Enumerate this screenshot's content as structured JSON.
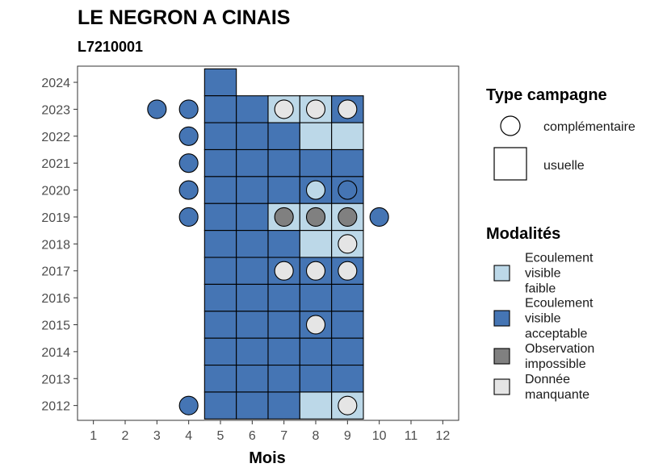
{
  "chart_data": {
    "type": "heatmap",
    "title": "LE NEGRON A CINAIS",
    "subtitle": "L7210001",
    "xlabel": "Mois",
    "ylabel": "",
    "x_ticks": [
      1,
      2,
      3,
      4,
      5,
      6,
      7,
      8,
      9,
      10,
      11,
      12
    ],
    "y_ticks": [
      2012,
      2013,
      2014,
      2015,
      2016,
      2017,
      2018,
      2019,
      2020,
      2021,
      2022,
      2023,
      2024
    ],
    "xlim": [
      0.5,
      12.5
    ],
    "ylim": [
      2011.45,
      2024.6
    ],
    "grid": false,
    "legend_position": "right",
    "colors": {
      "faible": "#bcd8e8",
      "acceptable": "#4575b4",
      "impossible": "#808080",
      "manquante": "#e5e5e5",
      "border": "#000000"
    },
    "legends": {
      "type": {
        "title": "Type campagne",
        "items": [
          {
            "label": "complémentaire",
            "shape": "circle"
          },
          {
            "label": "usuelle",
            "shape": "square"
          }
        ]
      },
      "modalites": {
        "title": "Modalités",
        "items": [
          {
            "key": "faible",
            "label_lines": [
              "Ecoulement",
              "visible",
              "faible"
            ]
          },
          {
            "key": "acceptable",
            "label_lines": [
              "Ecoulement",
              "visible",
              "acceptable"
            ]
          },
          {
            "key": "impossible",
            "label_lines": [
              "Observation",
              "impossible"
            ]
          },
          {
            "key": "manquante",
            "label_lines": [
              "Donnée",
              "manquante"
            ]
          }
        ]
      }
    },
    "usuelle": [
      {
        "year": 2024,
        "month": 5,
        "value": "acceptable"
      },
      {
        "year": 2023,
        "month": 5,
        "value": "acceptable"
      },
      {
        "year": 2023,
        "month": 6,
        "value": "acceptable"
      },
      {
        "year": 2023,
        "month": 7,
        "value": "faible"
      },
      {
        "year": 2023,
        "month": 8,
        "value": "faible"
      },
      {
        "year": 2023,
        "month": 9,
        "value": "acceptable"
      },
      {
        "year": 2022,
        "month": 5,
        "value": "acceptable"
      },
      {
        "year": 2022,
        "month": 6,
        "value": "acceptable"
      },
      {
        "year": 2022,
        "month": 7,
        "value": "acceptable"
      },
      {
        "year": 2022,
        "month": 8,
        "value": "faible"
      },
      {
        "year": 2022,
        "month": 9,
        "value": "faible"
      },
      {
        "year": 2021,
        "month": 5,
        "value": "acceptable"
      },
      {
        "year": 2021,
        "month": 6,
        "value": "acceptable"
      },
      {
        "year": 2021,
        "month": 7,
        "value": "acceptable"
      },
      {
        "year": 2021,
        "month": 8,
        "value": "acceptable"
      },
      {
        "year": 2021,
        "month": 9,
        "value": "acceptable"
      },
      {
        "year": 2020,
        "month": 5,
        "value": "acceptable"
      },
      {
        "year": 2020,
        "month": 6,
        "value": "acceptable"
      },
      {
        "year": 2020,
        "month": 7,
        "value": "acceptable"
      },
      {
        "year": 2020,
        "month": 8,
        "value": "acceptable"
      },
      {
        "year": 2020,
        "month": 9,
        "value": "acceptable"
      },
      {
        "year": 2019,
        "month": 5,
        "value": "acceptable"
      },
      {
        "year": 2019,
        "month": 6,
        "value": "acceptable"
      },
      {
        "year": 2019,
        "month": 7,
        "value": "faible"
      },
      {
        "year": 2019,
        "month": 8,
        "value": "faible"
      },
      {
        "year": 2019,
        "month": 9,
        "value": "faible"
      },
      {
        "year": 2018,
        "month": 5,
        "value": "acceptable"
      },
      {
        "year": 2018,
        "month": 6,
        "value": "acceptable"
      },
      {
        "year": 2018,
        "month": 7,
        "value": "acceptable"
      },
      {
        "year": 2018,
        "month": 8,
        "value": "faible"
      },
      {
        "year": 2018,
        "month": 9,
        "value": "faible"
      },
      {
        "year": 2017,
        "month": 5,
        "value": "acceptable"
      },
      {
        "year": 2017,
        "month": 6,
        "value": "acceptable"
      },
      {
        "year": 2017,
        "month": 7,
        "value": "acceptable"
      },
      {
        "year": 2017,
        "month": 8,
        "value": "acceptable"
      },
      {
        "year": 2017,
        "month": 9,
        "value": "acceptable"
      },
      {
        "year": 2016,
        "month": 5,
        "value": "acceptable"
      },
      {
        "year": 2016,
        "month": 6,
        "value": "acceptable"
      },
      {
        "year": 2016,
        "month": 7,
        "value": "acceptable"
      },
      {
        "year": 2016,
        "month": 8,
        "value": "acceptable"
      },
      {
        "year": 2016,
        "month": 9,
        "value": "acceptable"
      },
      {
        "year": 2015,
        "month": 5,
        "value": "acceptable"
      },
      {
        "year": 2015,
        "month": 6,
        "value": "acceptable"
      },
      {
        "year": 2015,
        "month": 7,
        "value": "acceptable"
      },
      {
        "year": 2015,
        "month": 8,
        "value": "acceptable"
      },
      {
        "year": 2015,
        "month": 9,
        "value": "acceptable"
      },
      {
        "year": 2014,
        "month": 5,
        "value": "acceptable"
      },
      {
        "year": 2014,
        "month": 6,
        "value": "acceptable"
      },
      {
        "year": 2014,
        "month": 7,
        "value": "acceptable"
      },
      {
        "year": 2014,
        "month": 8,
        "value": "acceptable"
      },
      {
        "year": 2014,
        "month": 9,
        "value": "acceptable"
      },
      {
        "year": 2013,
        "month": 5,
        "value": "acceptable"
      },
      {
        "year": 2013,
        "month": 6,
        "value": "acceptable"
      },
      {
        "year": 2013,
        "month": 7,
        "value": "acceptable"
      },
      {
        "year": 2013,
        "month": 8,
        "value": "acceptable"
      },
      {
        "year": 2013,
        "month": 9,
        "value": "acceptable"
      },
      {
        "year": 2012,
        "month": 5,
        "value": "acceptable"
      },
      {
        "year": 2012,
        "month": 6,
        "value": "acceptable"
      },
      {
        "year": 2012,
        "month": 7,
        "value": "acceptable"
      },
      {
        "year": 2012,
        "month": 8,
        "value": "faible"
      },
      {
        "year": 2012,
        "month": 9,
        "value": "faible"
      }
    ],
    "complementaire": [
      {
        "year": 2023,
        "month": 3,
        "value": "acceptable"
      },
      {
        "year": 2023,
        "month": 4,
        "value": "acceptable"
      },
      {
        "year": 2023,
        "month": 7,
        "value": "manquante"
      },
      {
        "year": 2023,
        "month": 8,
        "value": "manquante"
      },
      {
        "year": 2023,
        "month": 9,
        "value": "manquante"
      },
      {
        "year": 2022,
        "month": 4,
        "value": "acceptable"
      },
      {
        "year": 2021,
        "month": 4,
        "value": "acceptable"
      },
      {
        "year": 2020,
        "month": 4,
        "value": "acceptable"
      },
      {
        "year": 2020,
        "month": 8,
        "value": "faible"
      },
      {
        "year": 2020,
        "month": 9,
        "value": "acceptable"
      },
      {
        "year": 2019,
        "month": 4,
        "value": "acceptable"
      },
      {
        "year": 2019,
        "month": 7,
        "value": "impossible"
      },
      {
        "year": 2019,
        "month": 8,
        "value": "impossible"
      },
      {
        "year": 2019,
        "month": 9,
        "value": "impossible"
      },
      {
        "year": 2019,
        "month": 10,
        "value": "acceptable"
      },
      {
        "year": 2018,
        "month": 9,
        "value": "manquante"
      },
      {
        "year": 2017,
        "month": 7,
        "value": "manquante"
      },
      {
        "year": 2017,
        "month": 8,
        "value": "manquante"
      },
      {
        "year": 2017,
        "month": 9,
        "value": "manquante"
      },
      {
        "year": 2015,
        "month": 8,
        "value": "manquante"
      },
      {
        "year": 2012,
        "month": 4,
        "value": "acceptable"
      },
      {
        "year": 2012,
        "month": 9,
        "value": "manquante"
      }
    ]
  }
}
